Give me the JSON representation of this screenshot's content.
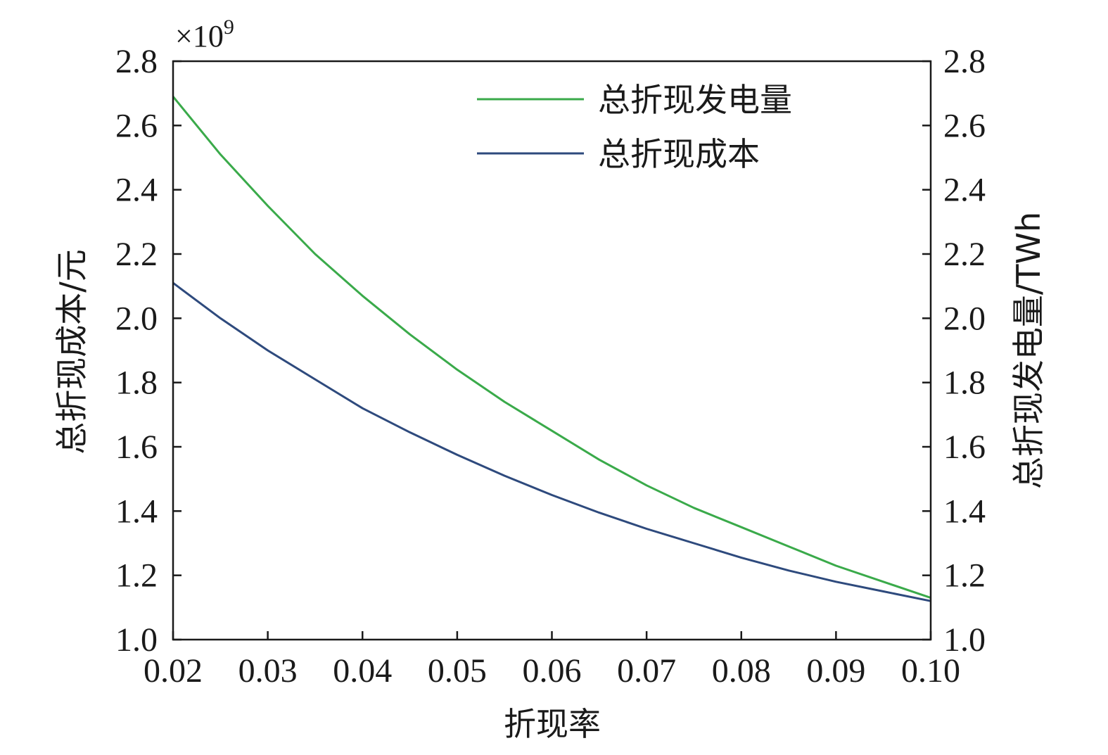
{
  "chart_data": {
    "type": "line",
    "xlabel": "折现率",
    "ylabel_left": "总折现成本/元",
    "ylabel_right": "总折现发电量/TWh",
    "left_axis_multiplier": "×10",
    "left_axis_multiplier_exp": "9",
    "x_ticks": [
      "0.02",
      "0.03",
      "0.04",
      "0.05",
      "0.06",
      "0.07",
      "0.08",
      "0.09",
      "0.10"
    ],
    "y_ticks": [
      "1.0",
      "1.2",
      "1.4",
      "1.6",
      "1.8",
      "2.0",
      "2.2",
      "2.4",
      "2.6",
      "2.8"
    ],
    "xlim": [
      0.02,
      0.1
    ],
    "ylim_left": [
      1.0,
      2.8
    ],
    "ylim_right": [
      1.0,
      2.8
    ],
    "grid": false,
    "legend": "top-right",
    "x": [
      0.02,
      0.025,
      0.03,
      0.035,
      0.04,
      0.045,
      0.05,
      0.055,
      0.06,
      0.065,
      0.07,
      0.075,
      0.08,
      0.085,
      0.09,
      0.095,
      0.1
    ],
    "series": [
      {
        "name": "总折现发电量",
        "axis": "right",
        "color": "#3aaa4a",
        "values": [
          2.69,
          2.51,
          2.35,
          2.2,
          2.07,
          1.95,
          1.84,
          1.74,
          1.65,
          1.56,
          1.48,
          1.41,
          1.35,
          1.29,
          1.23,
          1.18,
          1.13
        ]
      },
      {
        "name": "总折现成本",
        "axis": "left",
        "color": "#2e4a7d",
        "values": [
          2.11,
          2.0,
          1.9,
          1.81,
          1.72,
          1.645,
          1.575,
          1.51,
          1.45,
          1.395,
          1.345,
          1.3,
          1.255,
          1.215,
          1.18,
          1.15,
          1.12
        ]
      }
    ]
  }
}
